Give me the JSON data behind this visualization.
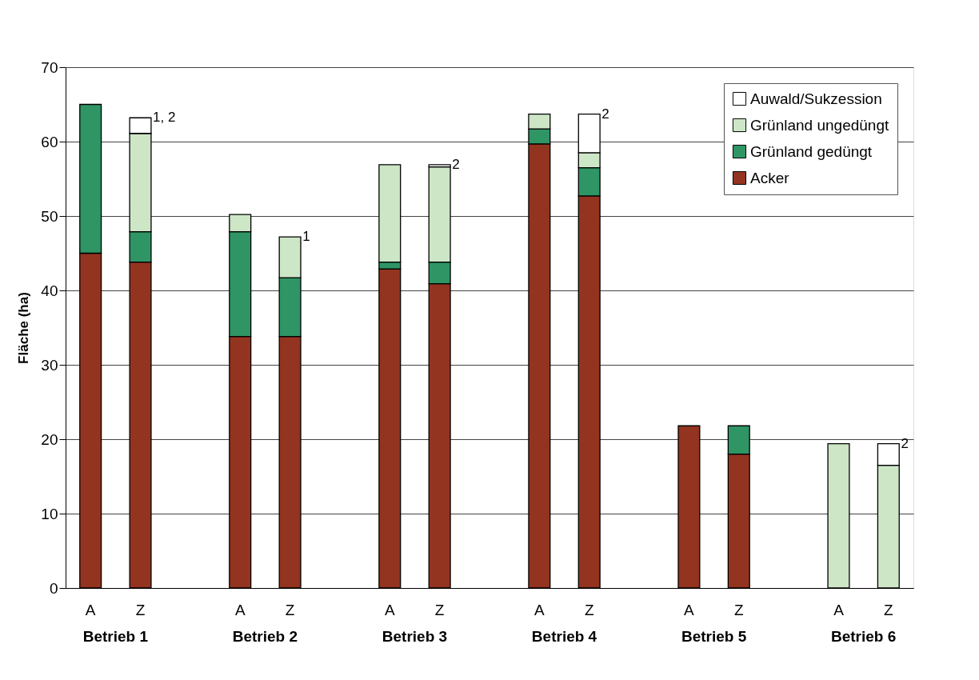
{
  "chart_data": {
    "type": "bar",
    "stacked": true,
    "ylabel": "Fläche (ha)",
    "categories": [
      "A",
      "Z",
      null,
      "A",
      "Z",
      null,
      "A",
      "Z",
      null,
      "A",
      "Z",
      null,
      "A",
      "Z",
      null,
      "A",
      "Z"
    ],
    "series": [
      {
        "name": "Acker",
        "color": "#933420",
        "values": [
          45,
          43.8,
          null,
          33.8,
          33.8,
          null,
          42.9,
          40.9,
          null,
          59.7,
          52.7,
          null,
          21.8,
          18.0,
          null,
          null,
          null
        ]
      },
      {
        "name": "Grünland gedüngt",
        "color": "#2f9565",
        "values": [
          20,
          4.1,
          null,
          14.1,
          7.9,
          null,
          0.9,
          2.9,
          null,
          2.0,
          3.8,
          null,
          null,
          3.8,
          null,
          null,
          null
        ]
      },
      {
        "name": "Grünland ungedüngt",
        "color": "#cde6c6",
        "values": [
          null,
          13.2,
          null,
          2.3,
          5.5,
          null,
          13.1,
          12.8,
          null,
          2.0,
          2.0,
          null,
          null,
          null,
          null,
          19.4,
          16.5
        ]
      },
      {
        "name": "Auwald/Sukzession",
        "color": "#ffffff",
        "values": [
          null,
          2.1,
          null,
          null,
          null,
          null,
          null,
          0.3,
          null,
          null,
          5.2,
          null,
          null,
          null,
          null,
          null,
          2.9
        ]
      }
    ],
    "ylim": [
      0,
      70
    ],
    "yticks": [
      0,
      10,
      20,
      30,
      40,
      50,
      60,
      70
    ],
    "grid": "y",
    "legend": "top right",
    "annotations": [
      "Betrieb 1",
      "Betrieb 2",
      "Betrieb 3",
      "Betrieb 4",
      "Betrieb 5",
      "Betrieb 6",
      "1, 2",
      "1",
      "2",
      "2",
      "2"
    ]
  }
}
